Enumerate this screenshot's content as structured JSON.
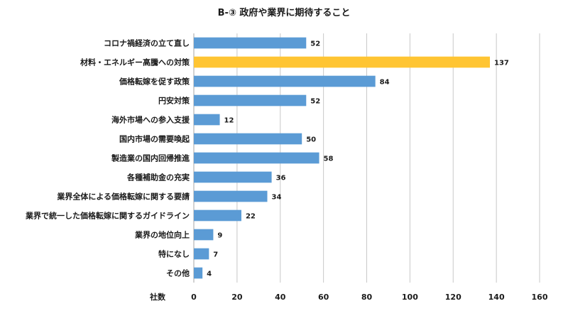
{
  "chart_data": {
    "type": "bar",
    "orientation": "horizontal",
    "title": "B-③ 政府や業界に期待すること",
    "xlabel": "社数",
    "ylabel": "",
    "xlim": [
      0,
      160
    ],
    "xticks": [
      0,
      20,
      40,
      60,
      80,
      100,
      120,
      140,
      160
    ],
    "grid": true,
    "categories": [
      "コロナ禍経済の立て直し",
      "材料・エネルギー高騰への対策",
      "価格転嫁を促す政策",
      "円安対策",
      "海外市場への参入支援",
      "国内市場の需要喚起",
      "製造業の国内回帰推進",
      "各種補助金の充実",
      "業界全体による価格転嫁に関する要請",
      "業界で統一した価格転嫁に関するガイドライン",
      "業界の地位向上",
      "特になし",
      "その他"
    ],
    "values": [
      52,
      137,
      84,
      52,
      12,
      50,
      58,
      36,
      34,
      22,
      9,
      7,
      4
    ],
    "highlight_index": 1,
    "colors": {
      "bar": "#5b9bd5",
      "highlight": "#ffc533",
      "grid": "#c8c8c8",
      "axis": "#a6a6a6"
    }
  }
}
